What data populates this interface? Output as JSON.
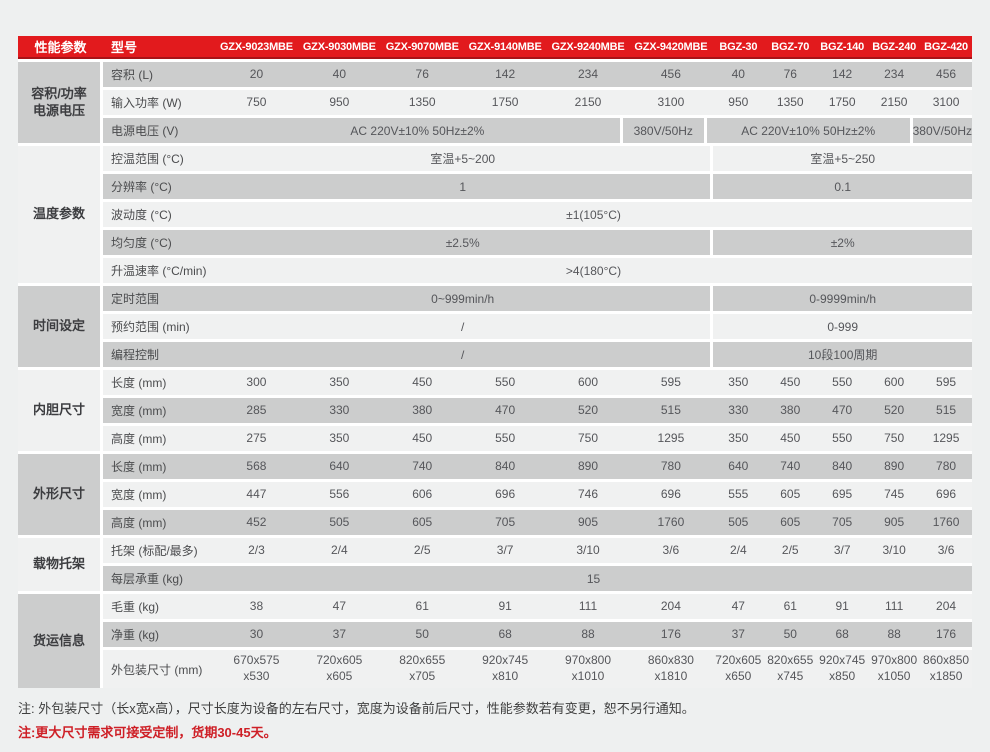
{
  "colors": {
    "header_bg": "#e21a1d",
    "header_border": "#a81317",
    "row_dark": "#cccdcd",
    "row_light": "#f0f1f1",
    "page_bg": "#eef0f0",
    "note_red": "#ce1f26",
    "note_dark": "#3f3f3f"
  },
  "header": {
    "param_col_label": "性能参数",
    "model_col_label": "型号",
    "models": [
      "GZX-9023MBE",
      "GZX-9030MBE",
      "GZX-9070MBE",
      "GZX-9140MBE",
      "GZX-9240MBE",
      "GZX-9420MBE",
      "BGZ-30",
      "BGZ-70",
      "BGZ-140",
      "BGZ-240",
      "BGZ-420"
    ]
  },
  "groups": [
    {
      "label": "容积/功率\n电源电压",
      "rows": [
        {
          "label": "容积 (L)",
          "values": [
            "20",
            "40",
            "76",
            "142",
            "234",
            "456",
            "40",
            "76",
            "142",
            "234",
            "456"
          ]
        },
        {
          "label": "输入功率 (W)",
          "values": [
            "750",
            "950",
            "1350",
            "1750",
            "2150",
            "3100",
            "950",
            "1350",
            "1750",
            "2150",
            "3100"
          ]
        },
        {
          "label": "电源电压 (V)",
          "segments": [
            {
              "cols": 5,
              "text": "AC 220V±10% 50Hz±2%"
            },
            {
              "cols": 1,
              "text": "380V/50Hz"
            },
            {
              "cols": 4,
              "text": "AC 220V±10% 50Hz±2%"
            },
            {
              "cols": 1,
              "text": "380V/50Hz"
            }
          ]
        }
      ]
    },
    {
      "label": "温度参数",
      "rows": [
        {
          "label": "控温范围 (°C)",
          "segments": [
            {
              "cols": 6,
              "text": "室温+5~200"
            },
            {
              "cols": 5,
              "text": "室温+5~250"
            }
          ]
        },
        {
          "label": "分辨率 (°C)",
          "segments": [
            {
              "cols": 6,
              "text": "1"
            },
            {
              "cols": 5,
              "text": "0.1"
            }
          ]
        },
        {
          "label": "波动度 (°C)",
          "segments": [
            {
              "cols": 11,
              "text": "±1(105°C)"
            }
          ]
        },
        {
          "label": "均匀度 (°C)",
          "segments": [
            {
              "cols": 6,
              "text": "±2.5%"
            },
            {
              "cols": 5,
              "text": "±2%"
            }
          ]
        },
        {
          "label": "升温速率 (°C/min)",
          "segments": [
            {
              "cols": 11,
              "text": ">4(180°C)"
            }
          ]
        }
      ]
    },
    {
      "label": "时间设定",
      "rows": [
        {
          "label": "定时范围",
          "segments": [
            {
              "cols": 6,
              "text": "0~999min/h"
            },
            {
              "cols": 5,
              "text": "0-9999min/h"
            }
          ]
        },
        {
          "label": "预约范围 (min)",
          "segments": [
            {
              "cols": 6,
              "text": "/"
            },
            {
              "cols": 5,
              "text": "0-999"
            }
          ]
        },
        {
          "label": "编程控制",
          "segments": [
            {
              "cols": 6,
              "text": "/"
            },
            {
              "cols": 5,
              "text": "10段100周期"
            }
          ]
        }
      ]
    },
    {
      "label": "内胆尺寸",
      "rows": [
        {
          "label": "长度 (mm)",
          "values": [
            "300",
            "350",
            "450",
            "550",
            "600",
            "595",
            "350",
            "450",
            "550",
            "600",
            "595"
          ]
        },
        {
          "label": "宽度 (mm)",
          "values": [
            "285",
            "330",
            "380",
            "470",
            "520",
            "515",
            "330",
            "380",
            "470",
            "520",
            "515"
          ]
        },
        {
          "label": "高度 (mm)",
          "values": [
            "275",
            "350",
            "450",
            "550",
            "750",
            "1295",
            "350",
            "450",
            "550",
            "750",
            "1295"
          ]
        }
      ]
    },
    {
      "label": "外形尺寸",
      "rows": [
        {
          "label": "长度 (mm)",
          "values": [
            "568",
            "640",
            "740",
            "840",
            "890",
            "780",
            "640",
            "740",
            "840",
            "890",
            "780"
          ]
        },
        {
          "label": "宽度 (mm)",
          "values": [
            "447",
            "556",
            "606",
            "696",
            "746",
            "696",
            "555",
            "605",
            "695",
            "745",
            "696"
          ]
        },
        {
          "label": "高度 (mm)",
          "values": [
            "452",
            "505",
            "605",
            "705",
            "905",
            "1760",
            "505",
            "605",
            "705",
            "905",
            "1760"
          ]
        }
      ]
    },
    {
      "label": "载物托架",
      "rows": [
        {
          "label": "托架 (标配/最多)",
          "values": [
            "2/3",
            "2/4",
            "2/5",
            "3/7",
            "3/10",
            "3/6",
            "2/4",
            "2/5",
            "3/7",
            "3/10",
            "3/6"
          ]
        },
        {
          "label": "每层承重 (kg)",
          "segments": [
            {
              "cols": 11,
              "text": "15"
            }
          ]
        }
      ]
    },
    {
      "label": "货运信息",
      "rows": [
        {
          "label": "毛重 (kg)",
          "values": [
            "38",
            "47",
            "61",
            "91",
            "111",
            "204",
            "47",
            "61",
            "91",
            "111",
            "204"
          ]
        },
        {
          "label": "净重 (kg)",
          "values": [
            "30",
            "37",
            "50",
            "68",
            "88",
            "176",
            "37",
            "50",
            "68",
            "88",
            "176"
          ]
        },
        {
          "label": "外包装尺寸 (mm)",
          "values": [
            "670x575\nx530",
            "720x605\nx605",
            "820x655\nx705",
            "920x745\nx810",
            "970x800\nx1010",
            "860x830\nx1810",
            "720x605\nx650",
            "820x655\nx745",
            "920x745\nx850",
            "970x800\nx1050",
            "860x850\nx1850"
          ]
        }
      ]
    }
  ],
  "notes": [
    {
      "text": "注: 外包装尺寸（长x宽x高），尺寸长度为设备的左右尺寸，宽度为设备前后尺寸，性能参数若有变更，恕不另行通知。",
      "color": "#3f3f3f"
    },
    {
      "text": "注:更大尺寸需求可接受定制，货期30-45天。",
      "color": "#ce1f26"
    }
  ]
}
